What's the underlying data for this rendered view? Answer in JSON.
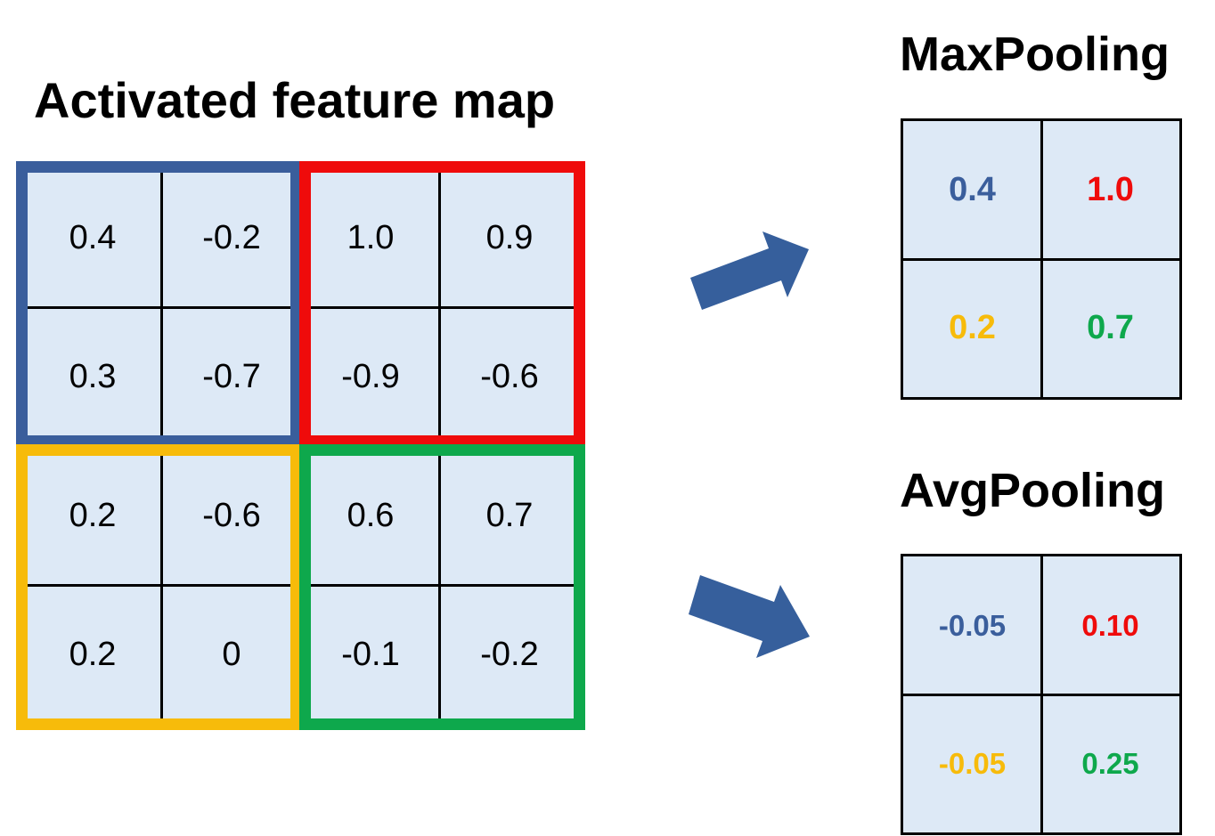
{
  "titles": {
    "main": "Activated feature map",
    "max": "MaxPooling",
    "avg": "AvgPooling"
  },
  "colors": {
    "blue": "#3a5e9c",
    "red": "#ef0b0b",
    "yellow": "#f7bb0a",
    "green": "#0ea84c",
    "cell_fill": "#dde9f6",
    "arrow": "#365f9c"
  },
  "feature_map": [
    [
      "0.4",
      "-0.2",
      "1.0",
      "0.9"
    ],
    [
      "0.3",
      "-0.7",
      "-0.9",
      "-0.6"
    ],
    [
      "0.2",
      "-0.6",
      "0.6",
      "0.7"
    ],
    [
      "0.2",
      "0",
      "-0.1",
      "-0.2"
    ]
  ],
  "max_pooling": [
    [
      "0.4",
      "1.0"
    ],
    [
      "0.2",
      "0.7"
    ]
  ],
  "avg_pooling": [
    [
      "-0.05",
      "0.10"
    ],
    [
      "-0.05",
      "0.25"
    ]
  ]
}
